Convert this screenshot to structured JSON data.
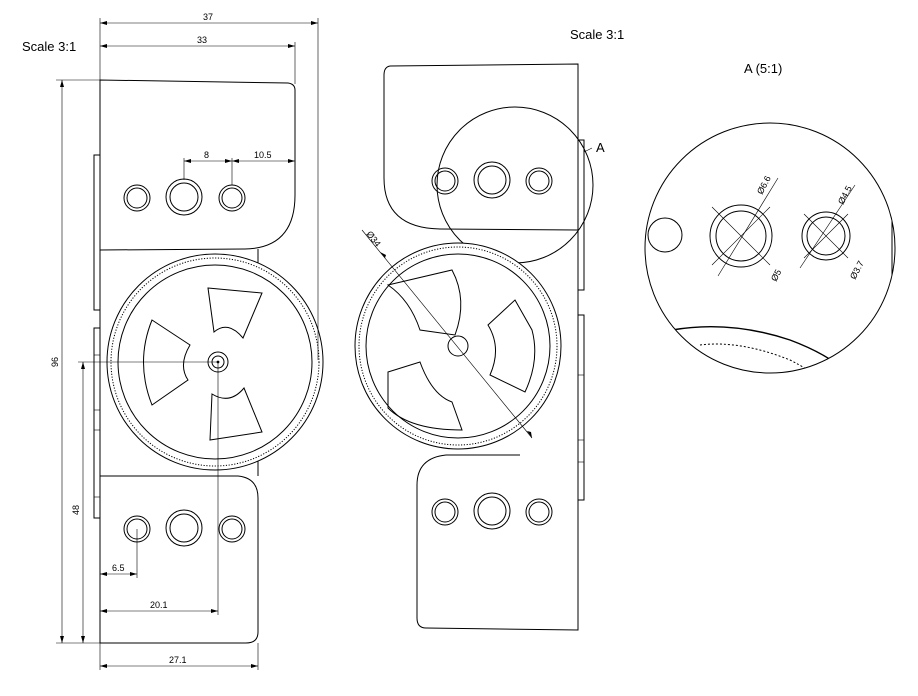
{
  "views": {
    "front": {
      "scale_label": "Scale 3:1"
    },
    "side": {
      "scale_label": "Scale 3:1",
      "detail_marker": "A"
    },
    "detail": {
      "title": "A (5:1)"
    }
  },
  "dimensions": {
    "overall_width": "37",
    "upper_width": "33",
    "hole_pitch": "8",
    "hole_offset": "10.5",
    "overall_height": "96",
    "lower_height": "48",
    "hole_edge": "6.5",
    "hub_offset": "20.1",
    "base_width": "27.1",
    "wheel_diameter": "Ø34",
    "hole_outer": "Ø6.6",
    "hole_inner": "Ø5",
    "small_outer": "Ø4.5",
    "small_inner": "Ø3.7"
  }
}
